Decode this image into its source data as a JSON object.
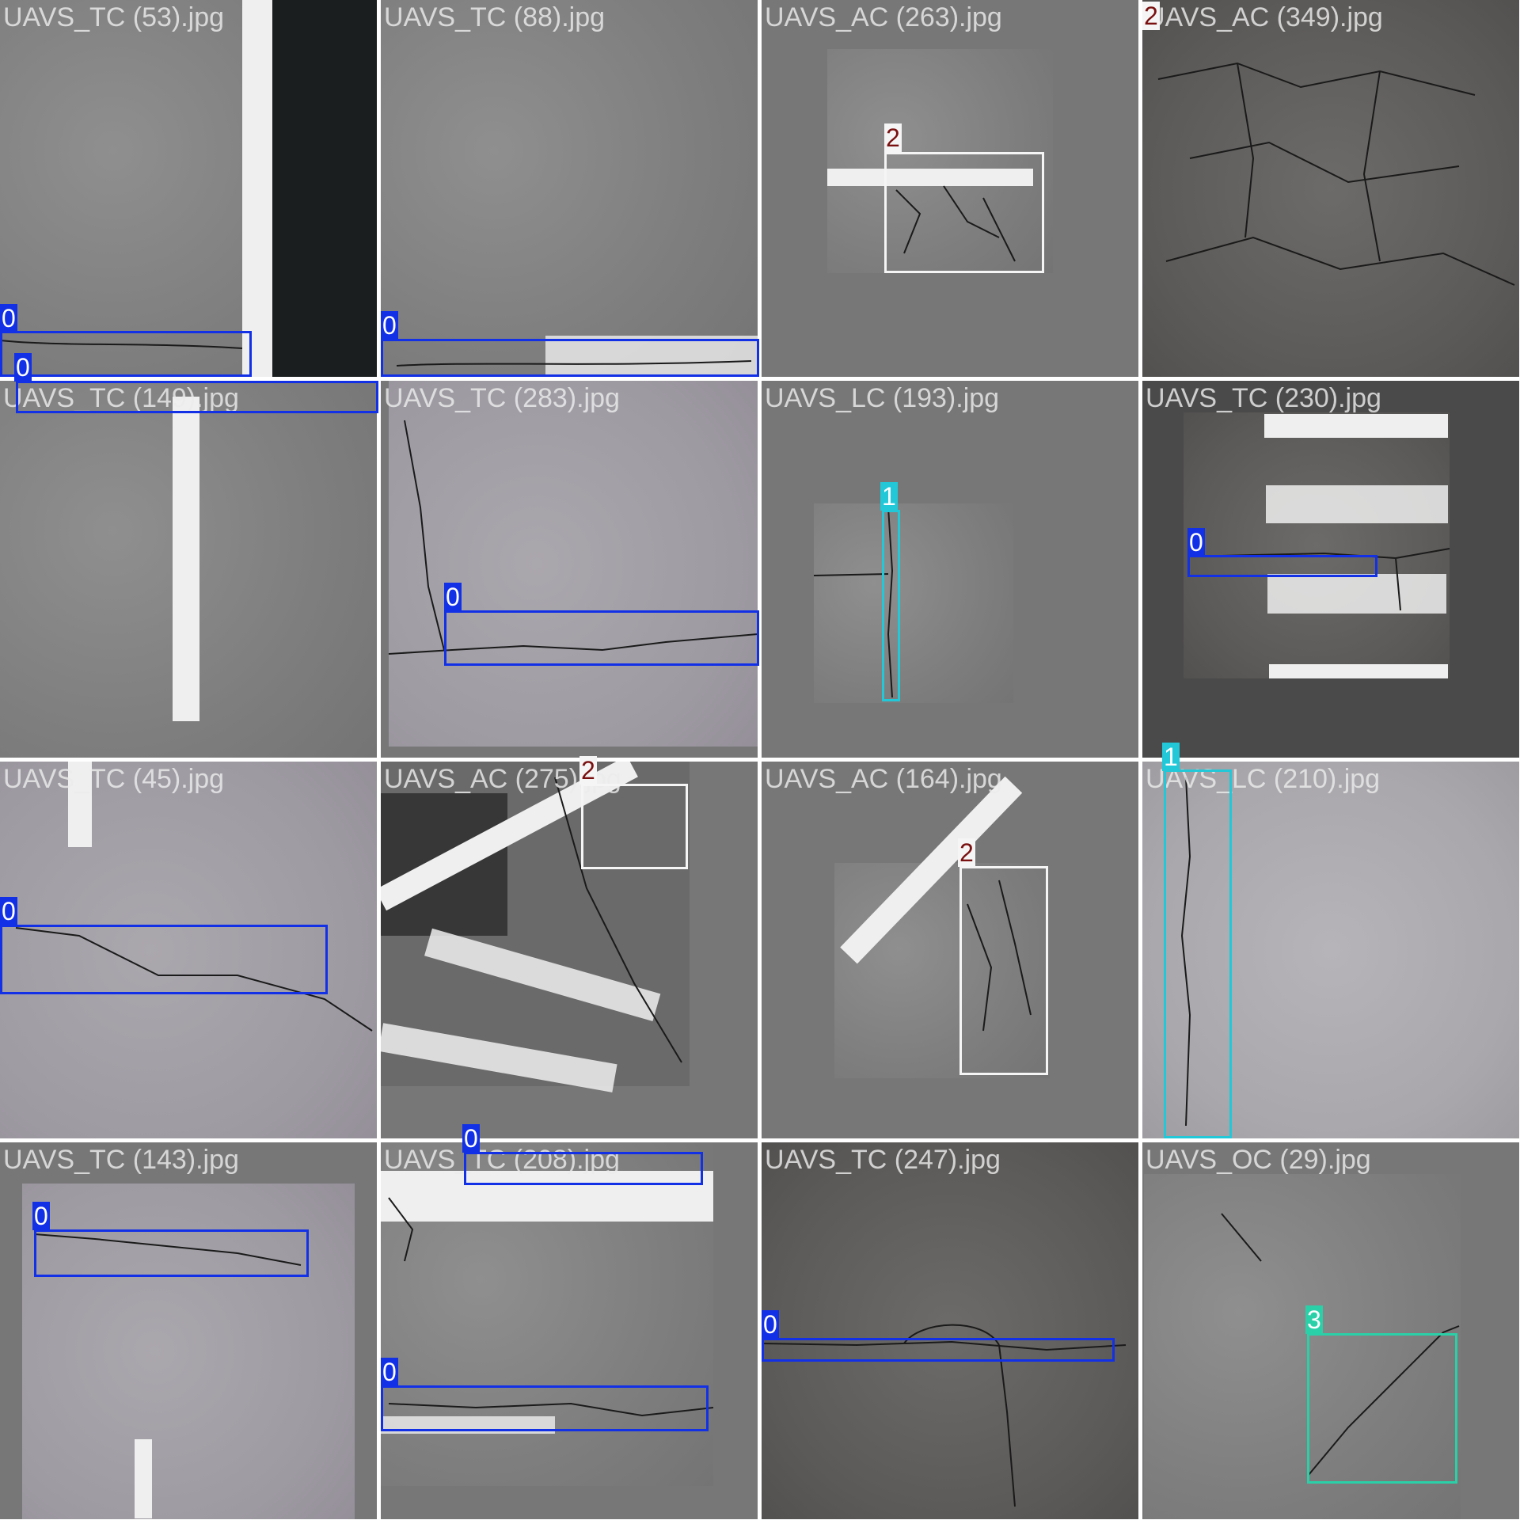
{
  "tiles": [
    {
      "filename": "UAVS_TC (53).jpg"
    },
    {
      "filename": "UAVS_TC (88).jpg"
    },
    {
      "filename": "UAVS_AC (263).jpg"
    },
    {
      "filename": "UAVS_AC (349).jpg"
    },
    {
      "filename": "UAVS_TC (149).jpg"
    },
    {
      "filename": "UAVS_TC (283).jpg"
    },
    {
      "filename": "UAVS_LC (193).jpg"
    },
    {
      "filename": "UAVS_TC (230).jpg"
    },
    {
      "filename": "UAVS_TC (45).jpg"
    },
    {
      "filename": "UAVS_AC (275).jpg"
    },
    {
      "filename": "UAVS_AC (164).jpg"
    },
    {
      "filename": "UAVS_LC (210).jpg"
    },
    {
      "filename": "UAVS_TC (143).jpg"
    },
    {
      "filename": "UAVS_TC (208).jpg"
    },
    {
      "filename": "UAVS_TC (247).jpg"
    },
    {
      "filename": "UAVS_OC (29).jpg"
    }
  ],
  "class_labels": {
    "transverse": "0",
    "longitudinal": "1",
    "alligator": "2",
    "oblique": "3"
  },
  "class_colors": {
    "0": "#1230e6",
    "1": "#22c8d8",
    "2": "#f5f5f5",
    "3": "#2ad0a8"
  }
}
